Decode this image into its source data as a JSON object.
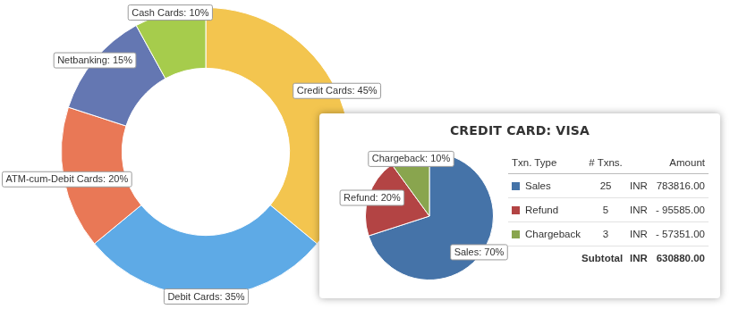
{
  "chart_data": [
    {
      "type": "doughnut",
      "categories": [
        "Credit Cards",
        "Debit Cards",
        "ATM-cum-Debit Cards",
        "Netbanking",
        "Cash Cards"
      ],
      "values": [
        45,
        35,
        20,
        15,
        10
      ],
      "value_labels": [
        "Credit Cards: 45%",
        "Debit Cards: 35%",
        "ATM-cum-Debit Cards: 20%",
        "Netbanking: 15%",
        "Cash Cards: 10%"
      ],
      "colors": [
        "#f3c54f",
        "#5eaae6",
        "#e97856",
        "#6477b2",
        "#a6cc4c"
      ],
      "data_labels": true
    },
    {
      "type": "pie",
      "title": "CREDIT CARD: VISA",
      "categories": [
        "Sales",
        "Refund",
        "Chargeback"
      ],
      "values": [
        70,
        20,
        10
      ],
      "value_labels": [
        "Sales: 70%",
        "Refund: 20%",
        "Chargeback: 10%"
      ],
      "colors": [
        "#4573a8",
        "#b34444",
        "#89a54e"
      ],
      "data_labels": true
    }
  ],
  "table": {
    "columns": [
      "Txn. Type",
      "# Txns.",
      "Amount"
    ],
    "rows": [
      {
        "type": "Sales",
        "count": 25,
        "currency": "INR",
        "amount": "783816.00"
      },
      {
        "type": "Refund",
        "count": 5,
        "currency": "INR",
        "amount": "- 95585.00"
      },
      {
        "type": "Chargeback",
        "count": 3,
        "currency": "INR",
        "amount": "- 57351.00"
      }
    ],
    "subtotal": {
      "label": "Subtotal",
      "currency": "INR",
      "amount": "630880.00"
    }
  }
}
